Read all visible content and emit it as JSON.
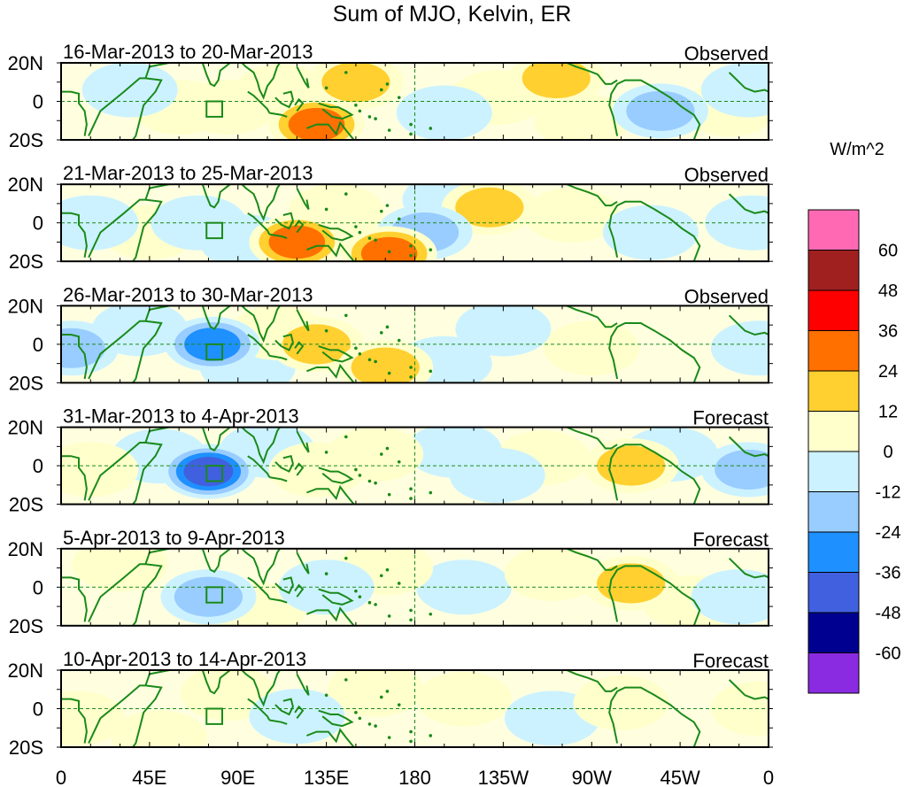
{
  "title": "Sum of MJO, Kelvin, ER",
  "chart_data": {
    "type": "heatmap",
    "title": "Sum of MJO, Kelvin, ER",
    "units": "W/m^2",
    "x_tick_labels": [
      "0",
      "45E",
      "90E",
      "135E",
      "180",
      "135W",
      "90W",
      "45W",
      "0"
    ],
    "x_tick_values_deg": [
      0,
      45,
      90,
      135,
      180,
      225,
      270,
      315,
      360
    ],
    "y_tick_labels": [
      "20N",
      "0",
      "20S"
    ],
    "y_tick_values_deg": [
      20,
      0,
      -20
    ],
    "x_range": [
      0,
      360
    ],
    "y_range": [
      -20,
      20
    ],
    "colorbar": {
      "labels": [
        "60",
        "48",
        "36",
        "24",
        "12",
        "0",
        "-12",
        "-24",
        "-36",
        "-48",
        "-60"
      ],
      "colors": [
        "#ff69b4",
        "#a02020",
        "#ff0000",
        "#ff7000",
        "#ffd030",
        "#ffffcc",
        "#ccf2ff",
        "#99ccff",
        "#1e90ff",
        "#4060e0",
        "#000090",
        "#8a2be2"
      ]
    },
    "panels": [
      {
        "date_range": "16-Mar-2013 to 20-Mar-2013",
        "status": "Observed",
        "features": [
          {
            "lon": 130,
            "lat": -12,
            "value": 45
          },
          {
            "lon": 150,
            "lat": 10,
            "value": 28
          },
          {
            "lon": 112,
            "lat": 5,
            "value": 20
          },
          {
            "lon": 85,
            "lat": -3,
            "value": 22
          },
          {
            "lon": 60,
            "lat": -3,
            "value": 15
          },
          {
            "lon": 252,
            "lat": 12,
            "value": 25
          },
          {
            "lon": 222,
            "lat": 2,
            "value": 12
          },
          {
            "lon": 305,
            "lat": -5,
            "value": -28
          },
          {
            "lon": 195,
            "lat": -6,
            "value": -20
          },
          {
            "lon": 35,
            "lat": 6,
            "value": -16
          },
          {
            "lon": 350,
            "lat": 6,
            "value": -14
          },
          {
            "lon": 265,
            "lat": -10,
            "value": 12
          },
          {
            "lon": 340,
            "lat": -4,
            "value": 10
          }
        ]
      },
      {
        "date_range": "21-Mar-2013 to 25-Mar-2013",
        "status": "Observed",
        "features": [
          {
            "lon": 120,
            "lat": -10,
            "value": 38
          },
          {
            "lon": 167,
            "lat": -16,
            "value": 36
          },
          {
            "lon": 218,
            "lat": 8,
            "value": 25
          },
          {
            "lon": 140,
            "lat": 6,
            "value": 15
          },
          {
            "lon": 45,
            "lat": -5,
            "value": 12
          },
          {
            "lon": 70,
            "lat": 0,
            "value": -15
          },
          {
            "lon": 185,
            "lat": -5,
            "value": -25
          },
          {
            "lon": 15,
            "lat": 0,
            "value": -20
          },
          {
            "lon": 95,
            "lat": -10,
            "value": -14
          },
          {
            "lon": 198,
            "lat": 12,
            "value": -12
          },
          {
            "lon": 300,
            "lat": -5,
            "value": -12
          },
          {
            "lon": 352,
            "lat": 0,
            "value": -22
          },
          {
            "lon": 260,
            "lat": 4,
            "value": 10
          }
        ]
      },
      {
        "date_range": "26-Mar-2013 to 30-Mar-2013",
        "status": "Observed",
        "features": [
          {
            "lon": 77,
            "lat": 0,
            "value": -40
          },
          {
            "lon": 130,
            "lat": 0,
            "value": 25
          },
          {
            "lon": 165,
            "lat": -12,
            "value": 32
          },
          {
            "lon": 110,
            "lat": 6,
            "value": 14
          },
          {
            "lon": 5,
            "lat": -2,
            "value": -25
          },
          {
            "lon": 225,
            "lat": 8,
            "value": -14
          },
          {
            "lon": 270,
            "lat": -2,
            "value": 12
          },
          {
            "lon": 355,
            "lat": -2,
            "value": -18
          },
          {
            "lon": 40,
            "lat": 8,
            "value": -14
          },
          {
            "lon": 195,
            "lat": -10,
            "value": -12
          },
          {
            "lon": 95,
            "lat": -12,
            "value": -12
          }
        ]
      },
      {
        "date_range": "31-Mar-2013 to 4-Apr-2013",
        "status": "Forecast",
        "features": [
          {
            "lon": 75,
            "lat": -3,
            "value": -55
          },
          {
            "lon": 130,
            "lat": -2,
            "value": 22
          },
          {
            "lon": 160,
            "lat": 6,
            "value": 20
          },
          {
            "lon": 290,
            "lat": 0,
            "value": 26
          },
          {
            "lon": 200,
            "lat": 8,
            "value": -18
          },
          {
            "lon": 222,
            "lat": -5,
            "value": -16
          },
          {
            "lon": 350,
            "lat": -2,
            "value": -30
          },
          {
            "lon": 15,
            "lat": -2,
            "value": 14
          },
          {
            "lon": 105,
            "lat": 8,
            "value": -12
          },
          {
            "lon": 310,
            "lat": 6,
            "value": -14
          },
          {
            "lon": 50,
            "lat": 5,
            "value": -12
          },
          {
            "lon": 245,
            "lat": 4,
            "value": 10
          }
        ]
      },
      {
        "date_range": "5-Apr-2013 to 9-Apr-2013",
        "status": "Forecast",
        "features": [
          {
            "lon": 75,
            "lat": -5,
            "value": -26
          },
          {
            "lon": 290,
            "lat": 2,
            "value": 28
          },
          {
            "lon": 250,
            "lat": 7,
            "value": 18
          },
          {
            "lon": 165,
            "lat": 10,
            "value": 14
          },
          {
            "lon": 135,
            "lat": 0,
            "value": -14
          },
          {
            "lon": 30,
            "lat": 12,
            "value": 12
          },
          {
            "lon": 345,
            "lat": -5,
            "value": -14
          },
          {
            "lon": 205,
            "lat": 0,
            "value": -12
          },
          {
            "lon": 320,
            "lat": -8,
            "value": 10
          },
          {
            "lon": 100,
            "lat": -12,
            "value": 10
          }
        ]
      },
      {
        "date_range": "10-Apr-2013 to 14-Apr-2013",
        "status": "Forecast",
        "features": [
          {
            "lon": 120,
            "lat": -4,
            "value": -22
          },
          {
            "lon": 285,
            "lat": 3,
            "value": 15
          },
          {
            "lon": 355,
            "lat": 0,
            "value": 14
          },
          {
            "lon": 50,
            "lat": -15,
            "value": 16
          },
          {
            "lon": 8,
            "lat": -5,
            "value": 14
          },
          {
            "lon": 205,
            "lat": 5,
            "value": 12
          },
          {
            "lon": 250,
            "lat": -5,
            "value": -12
          },
          {
            "lon": 85,
            "lat": 8,
            "value": 10
          },
          {
            "lon": 160,
            "lat": 10,
            "value": 10
          }
        ]
      }
    ]
  }
}
